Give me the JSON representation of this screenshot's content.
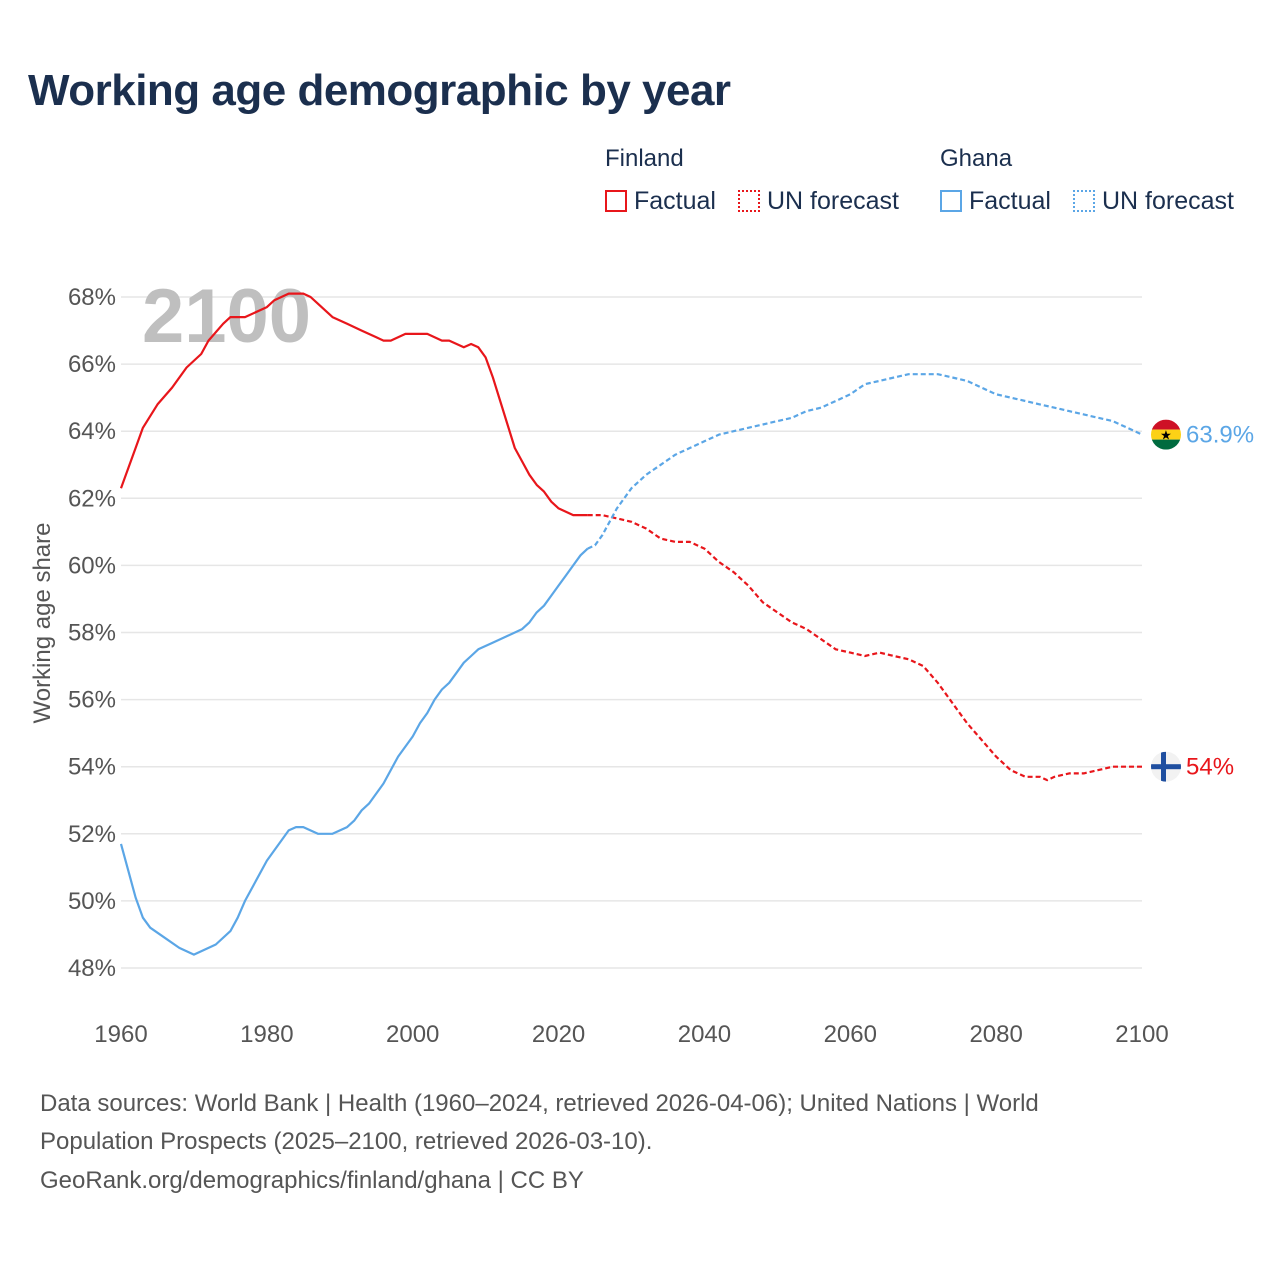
{
  "title": "Working age demographic by year",
  "legend": {
    "groups": [
      {
        "name": "Finland",
        "color": "#e8161b",
        "items": [
          "Factual",
          "UN forecast"
        ]
      },
      {
        "name": "Ghana",
        "color": "#5ba6e6",
        "items": [
          "Factual",
          "UN forecast"
        ]
      }
    ]
  },
  "footer": {
    "line1": "Data sources: World Bank | Health (1960–2024, retrieved 2026-04-06); United Nations | World",
    "line2": "Population Prospects (2025–2100, retrieved 2026-03-10).",
    "line3": "GeoRank.org/demographics/finland/ghana | CC BY"
  },
  "chart_data": {
    "type": "line",
    "title": "Working age demographic by year",
    "year_watermark": "2100",
    "xlabel": "",
    "ylabel": "Working age share",
    "xlim": [
      1960,
      2100
    ],
    "ylim": [
      47,
      69
    ],
    "x_ticks": [
      "1960",
      "1980",
      "2000",
      "2020",
      "2040",
      "2060",
      "2080",
      "2100"
    ],
    "x_tick_values": [
      1960,
      1980,
      2000,
      2020,
      2040,
      2060,
      2080,
      2100
    ],
    "y_ticks": [
      "48%",
      "50%",
      "52%",
      "54%",
      "56%",
      "58%",
      "60%",
      "62%",
      "64%",
      "66%",
      "68%"
    ],
    "y_tick_values": [
      48,
      50,
      52,
      54,
      56,
      58,
      60,
      62,
      64,
      66,
      68
    ],
    "grid": true,
    "series": [
      {
        "name": "Finland",
        "segment": "Factual",
        "color": "#e8161b",
        "dashed": false,
        "points": [
          [
            1960,
            62.3
          ],
          [
            1961,
            62.9
          ],
          [
            1962,
            63.5
          ],
          [
            1963,
            64.1
          ],
          [
            1965,
            64.8
          ],
          [
            1967,
            65.3
          ],
          [
            1969,
            65.9
          ],
          [
            1971,
            66.3
          ],
          [
            1972,
            66.7
          ],
          [
            1974,
            67.2
          ],
          [
            1975,
            67.4
          ],
          [
            1977,
            67.4
          ],
          [
            1980,
            67.7
          ],
          [
            1981,
            67.9
          ],
          [
            1983,
            68.1
          ],
          [
            1985,
            68.1
          ],
          [
            1986,
            68.0
          ],
          [
            1987,
            67.8
          ],
          [
            1989,
            67.4
          ],
          [
            1991,
            67.2
          ],
          [
            1993,
            67.0
          ],
          [
            1995,
            66.8
          ],
          [
            1996,
            66.7
          ],
          [
            1997,
            66.7
          ],
          [
            1999,
            66.9
          ],
          [
            2000,
            66.9
          ],
          [
            2002,
            66.9
          ],
          [
            2004,
            66.7
          ],
          [
            2005,
            66.7
          ],
          [
            2007,
            66.5
          ],
          [
            2008,
            66.6
          ],
          [
            2009,
            66.5
          ],
          [
            2010,
            66.2
          ],
          [
            2011,
            65.6
          ],
          [
            2012,
            64.9
          ],
          [
            2013,
            64.2
          ],
          [
            2014,
            63.5
          ],
          [
            2015,
            63.1
          ],
          [
            2016,
            62.7
          ],
          [
            2017,
            62.4
          ],
          [
            2018,
            62.2
          ],
          [
            2019,
            61.9
          ],
          [
            2020,
            61.7
          ],
          [
            2021,
            61.6
          ],
          [
            2022,
            61.5
          ],
          [
            2023,
            61.5
          ],
          [
            2024,
            61.5
          ]
        ]
      },
      {
        "name": "Finland",
        "segment": "UN forecast",
        "color": "#e8161b",
        "dashed": true,
        "points": [
          [
            2024,
            61.5
          ],
          [
            2026,
            61.5
          ],
          [
            2028,
            61.4
          ],
          [
            2030,
            61.3
          ],
          [
            2032,
            61.1
          ],
          [
            2034,
            60.8
          ],
          [
            2036,
            60.7
          ],
          [
            2038,
            60.7
          ],
          [
            2040,
            60.5
          ],
          [
            2042,
            60.1
          ],
          [
            2044,
            59.8
          ],
          [
            2046,
            59.4
          ],
          [
            2048,
            58.9
          ],
          [
            2050,
            58.6
          ],
          [
            2052,
            58.3
          ],
          [
            2054,
            58.1
          ],
          [
            2056,
            57.8
          ],
          [
            2058,
            57.5
          ],
          [
            2060,
            57.4
          ],
          [
            2062,
            57.3
          ],
          [
            2064,
            57.4
          ],
          [
            2066,
            57.3
          ],
          [
            2068,
            57.2
          ],
          [
            2070,
            57.0
          ],
          [
            2072,
            56.5
          ],
          [
            2074,
            55.9
          ],
          [
            2076,
            55.3
          ],
          [
            2078,
            54.8
          ],
          [
            2080,
            54.3
          ],
          [
            2082,
            53.9
          ],
          [
            2084,
            53.7
          ],
          [
            2086,
            53.7
          ],
          [
            2087,
            53.6
          ],
          [
            2088,
            53.7
          ],
          [
            2090,
            53.8
          ],
          [
            2092,
            53.8
          ],
          [
            2094,
            53.9
          ],
          [
            2096,
            54.0
          ],
          [
            2098,
            54.0
          ],
          [
            2100,
            54.0
          ]
        ]
      },
      {
        "name": "Ghana",
        "segment": "Factual",
        "color": "#5ba6e6",
        "dashed": false,
        "points": [
          [
            1960,
            51.7
          ],
          [
            1961,
            50.9
          ],
          [
            1962,
            50.1
          ],
          [
            1963,
            49.5
          ],
          [
            1964,
            49.2
          ],
          [
            1966,
            48.9
          ],
          [
            1968,
            48.6
          ],
          [
            1970,
            48.4
          ],
          [
            1971,
            48.5
          ],
          [
            1973,
            48.7
          ],
          [
            1975,
            49.1
          ],
          [
            1976,
            49.5
          ],
          [
            1977,
            50.0
          ],
          [
            1978,
            50.4
          ],
          [
            1980,
            51.2
          ],
          [
            1981,
            51.5
          ],
          [
            1982,
            51.8
          ],
          [
            1983,
            52.1
          ],
          [
            1984,
            52.2
          ],
          [
            1985,
            52.2
          ],
          [
            1987,
            52.0
          ],
          [
            1989,
            52.0
          ],
          [
            1991,
            52.2
          ],
          [
            1992,
            52.4
          ],
          [
            1993,
            52.7
          ],
          [
            1994,
            52.9
          ],
          [
            1995,
            53.2
          ],
          [
            1996,
            53.5
          ],
          [
            1998,
            54.3
          ],
          [
            2000,
            54.9
          ],
          [
            2001,
            55.3
          ],
          [
            2002,
            55.6
          ],
          [
            2003,
            56.0
          ],
          [
            2004,
            56.3
          ],
          [
            2005,
            56.5
          ],
          [
            2006,
            56.8
          ],
          [
            2007,
            57.1
          ],
          [
            2008,
            57.3
          ],
          [
            2009,
            57.5
          ],
          [
            2011,
            57.7
          ],
          [
            2013,
            57.9
          ],
          [
            2015,
            58.1
          ],
          [
            2016,
            58.3
          ],
          [
            2017,
            58.6
          ],
          [
            2018,
            58.8
          ],
          [
            2019,
            59.1
          ],
          [
            2020,
            59.4
          ],
          [
            2021,
            59.7
          ],
          [
            2022,
            60.0
          ],
          [
            2023,
            60.3
          ],
          [
            2024,
            60.5
          ]
        ]
      },
      {
        "name": "Ghana",
        "segment": "UN forecast",
        "color": "#5ba6e6",
        "dashed": true,
        "points": [
          [
            2024,
            60.5
          ],
          [
            2025,
            60.6
          ],
          [
            2026,
            60.9
          ],
          [
            2027,
            61.3
          ],
          [
            2028,
            61.7
          ],
          [
            2030,
            62.3
          ],
          [
            2032,
            62.7
          ],
          [
            2034,
            63.0
          ],
          [
            2036,
            63.3
          ],
          [
            2038,
            63.5
          ],
          [
            2040,
            63.7
          ],
          [
            2042,
            63.9
          ],
          [
            2044,
            64.0
          ],
          [
            2046,
            64.1
          ],
          [
            2048,
            64.2
          ],
          [
            2050,
            64.3
          ],
          [
            2052,
            64.4
          ],
          [
            2054,
            64.6
          ],
          [
            2056,
            64.7
          ],
          [
            2058,
            64.9
          ],
          [
            2060,
            65.1
          ],
          [
            2062,
            65.4
          ],
          [
            2064,
            65.5
          ],
          [
            2066,
            65.6
          ],
          [
            2068,
            65.7
          ],
          [
            2070,
            65.7
          ],
          [
            2072,
            65.7
          ],
          [
            2074,
            65.6
          ],
          [
            2076,
            65.5
          ],
          [
            2078,
            65.3
          ],
          [
            2080,
            65.1
          ],
          [
            2082,
            65.0
          ],
          [
            2084,
            64.9
          ],
          [
            2086,
            64.8
          ],
          [
            2088,
            64.7
          ],
          [
            2090,
            64.6
          ],
          [
            2092,
            64.5
          ],
          [
            2094,
            64.4
          ],
          [
            2096,
            64.3
          ],
          [
            2098,
            64.1
          ],
          [
            2100,
            63.9
          ]
        ]
      }
    ],
    "end_labels": [
      {
        "country": "Ghana",
        "value": 63.9,
        "text": "63.9%",
        "color": "#5ba6e6",
        "flag": "ghana-flag"
      },
      {
        "country": "Finland",
        "value": 54.0,
        "text": "54%",
        "color": "#e8161b",
        "flag": "finland-flag"
      }
    ]
  }
}
